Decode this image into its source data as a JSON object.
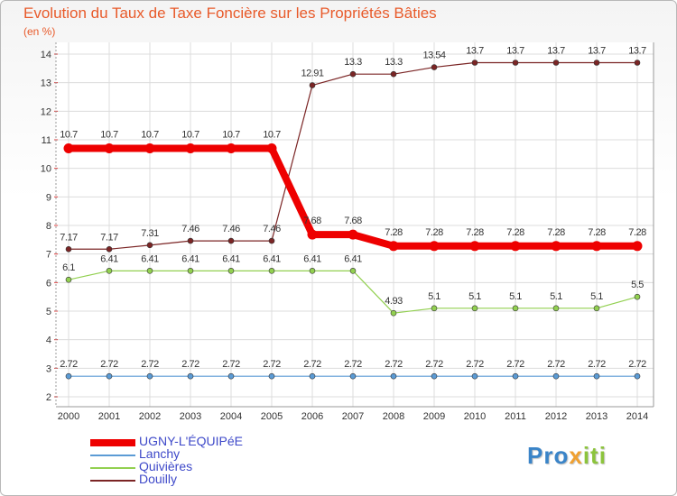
{
  "chart_data": {
    "type": "line",
    "title": "Evolution du Taux de Taxe Foncière sur les Propriétés Bâties",
    "ylabel": "(en %)",
    "xlabel": "",
    "x": [
      "2000",
      "2001",
      "2002",
      "2003",
      "2004",
      "2005",
      "2006",
      "2007",
      "2008",
      "2009",
      "2010",
      "2011",
      "2012",
      "2013",
      "2014"
    ],
    "yticks": [
      "2",
      "3",
      "4",
      "5",
      "6",
      "7",
      "8",
      "9",
      "10",
      "11",
      "12",
      "13",
      "14"
    ],
    "ylim": [
      2,
      14
    ],
    "series": [
      {
        "name": "UGNY-L'ÉQUIPéE",
        "color": "#ee0000",
        "values": [
          10.7,
          10.7,
          10.7,
          10.7,
          10.7,
          10.7,
          7.68,
          7.68,
          7.28,
          7.28,
          7.28,
          7.28,
          7.28,
          7.28,
          7.28
        ],
        "labels": [
          "10.7",
          "10.7",
          "10.7",
          "10.7",
          "10.7",
          "10.7",
          "7.68",
          "7.68",
          "7.28",
          "7.28",
          "7.28",
          "7.28",
          "7.28",
          "7.28",
          "7.28"
        ]
      },
      {
        "name": "Lanchy",
        "color": "#5b9bd5",
        "values": [
          2.72,
          2.72,
          2.72,
          2.72,
          2.72,
          2.72,
          2.72,
          2.72,
          2.72,
          2.72,
          2.72,
          2.72,
          2.72,
          2.72,
          2.72
        ],
        "labels": [
          "2.72",
          "2.72",
          "2.72",
          "2.72",
          "2.72",
          "2.72",
          "2.72",
          "2.72",
          "2.72",
          "2.72",
          "2.72",
          "2.72",
          "2.72",
          "2.72",
          "2.72"
        ]
      },
      {
        "name": "Quivières",
        "color": "#92d050",
        "values": [
          6.1,
          6.41,
          6.41,
          6.41,
          6.41,
          6.41,
          6.41,
          6.41,
          4.93,
          5.1,
          5.1,
          5.1,
          5.1,
          5.1,
          5.5
        ],
        "labels": [
          "6.1",
          "6.41",
          "6.41",
          "6.41",
          "6.41",
          "6.41",
          "6.41",
          "6.41",
          "4.93",
          "5.1",
          "5.1",
          "5.1",
          "5.1",
          "5.1",
          "5.5"
        ]
      },
      {
        "name": "Douilly",
        "color": "#7b2525",
        "values": [
          7.17,
          7.17,
          7.31,
          7.46,
          7.46,
          7.46,
          12.91,
          13.3,
          13.3,
          13.54,
          13.7,
          13.7,
          13.7,
          13.7,
          13.7
        ],
        "labels": [
          "7.17",
          "7.17",
          "7.31",
          "7.46",
          "7.46",
          "7.46",
          "12.91",
          "13.3",
          "13.3",
          "13.54",
          "13.7",
          "13.7",
          "13.7",
          "13.7",
          "13.7"
        ]
      }
    ]
  },
  "legend": [
    "UGNY-L'ÉQUIPéE",
    "Lanchy",
    "Quivières",
    "Douilly"
  ],
  "logo": {
    "part1": "Pro",
    "part2": "x",
    "part3": "iti"
  }
}
